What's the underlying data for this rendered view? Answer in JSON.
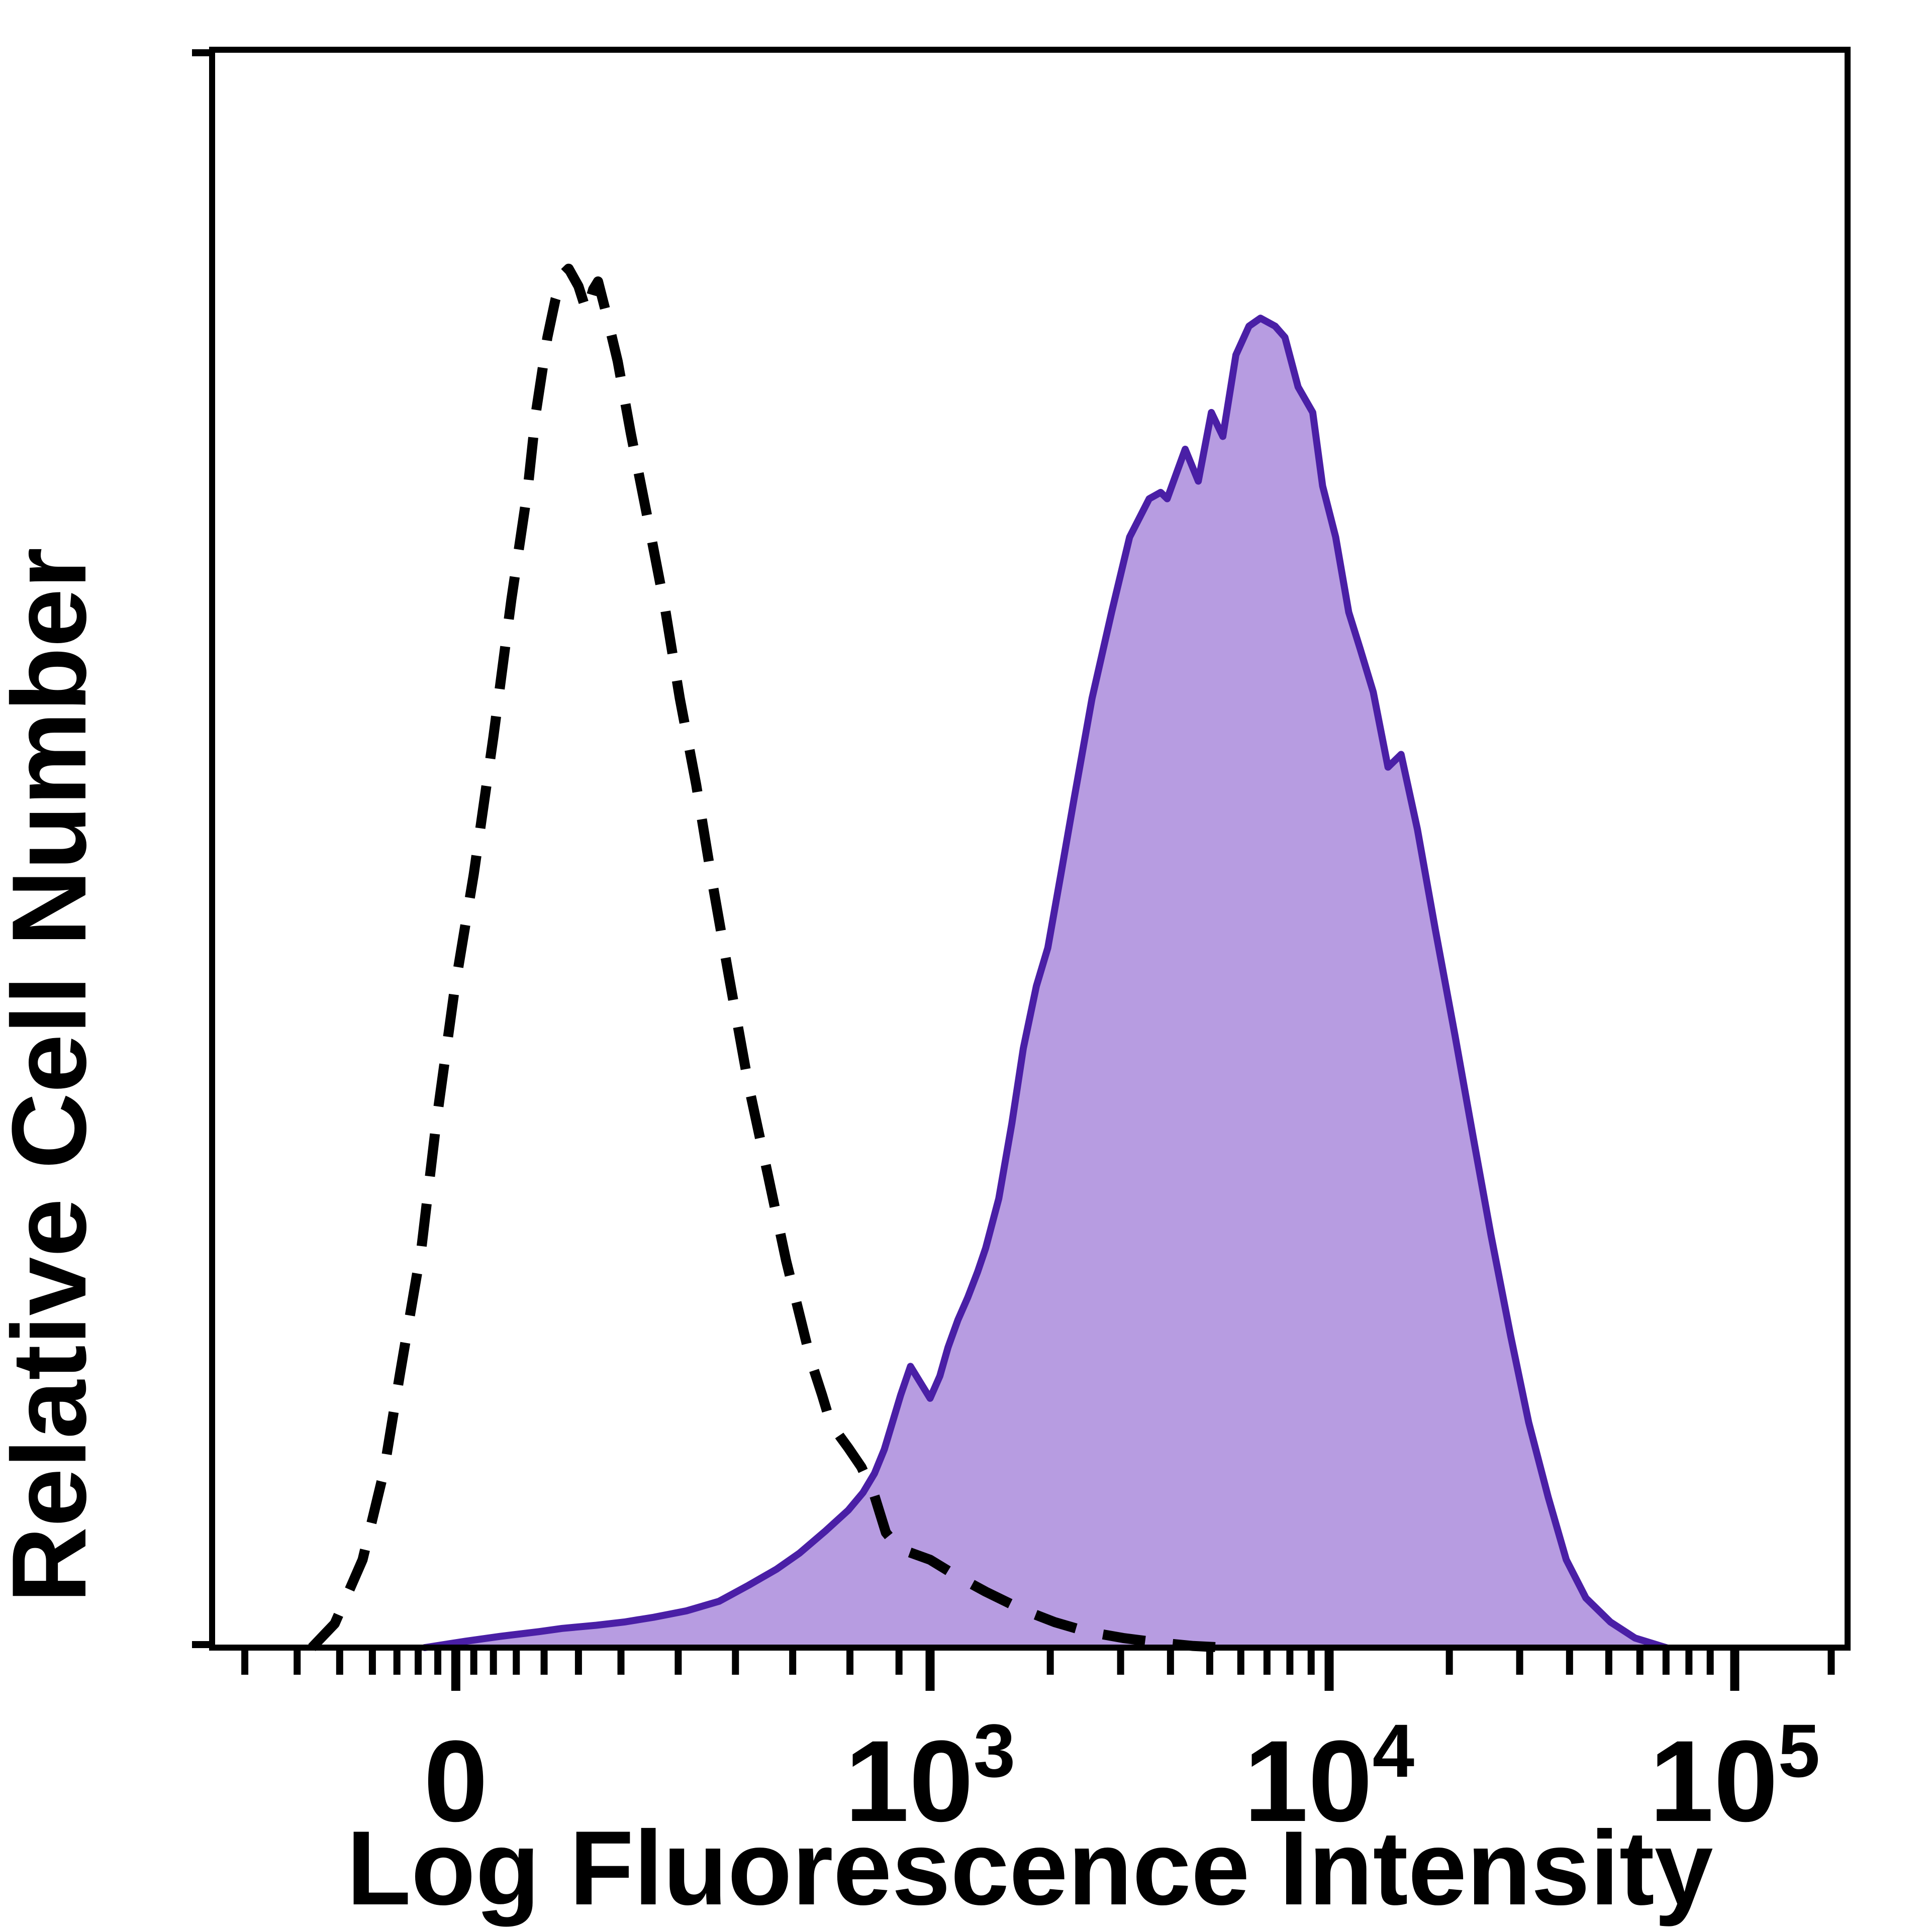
{
  "page": {
    "background": "#ffffff"
  },
  "chart_data": {
    "type": "area",
    "title": "",
    "xlabel": "Log Fluorescence Intensity",
    "ylabel": "Relative Cell Number",
    "x_scale": "biexponential (compressed linear region around 0, log10 above 10^3)",
    "x_range_note": "axis fractions 0-1 span the plot frame; labeled ticks placed at the fractions below",
    "y_range": [
      0,
      1
    ],
    "y_ticks": "none (unlabeled relative scale)",
    "grid": "off",
    "legend": "none shown",
    "colors": {
      "frame": "#000000",
      "dashed_curve": "#000000",
      "filled_curve_stroke": "#4a1fa6",
      "filled_curve_fill": "#b79ce1"
    },
    "x_ticks": [
      {
        "label": "0",
        "base": "0",
        "exp": "",
        "pos": 0.149
      },
      {
        "label": "10^3",
        "base": "10",
        "exp": "3",
        "pos": 0.439
      },
      {
        "label": "10^4",
        "base": "10",
        "exp": "4",
        "pos": 0.683
      },
      {
        "label": "10^5",
        "base": "10",
        "exp": "5",
        "pos": 0.931
      }
    ],
    "x_minor_ticks": [
      0.02,
      0.052,
      0.078,
      0.098,
      0.113,
      0.126,
      0.138,
      0.16,
      0.172,
      0.186,
      0.203,
      0.224,
      0.25,
      0.285,
      0.32,
      0.355,
      0.39,
      0.42,
      0.5125,
      0.5555,
      0.586,
      0.61,
      0.629,
      0.645,
      0.659,
      0.672,
      0.7565,
      0.7995,
      0.83,
      0.854,
      0.873,
      0.889,
      0.903,
      0.916,
      0.99
    ],
    "series": [
      {
        "name": "dashed_black_curve",
        "style": "dashed-line",
        "stroke": "#000000",
        "fill": "none",
        "peak": {
          "pos": 0.218,
          "height": 0.863
        },
        "points": [
          [
            0.061,
            0.0
          ],
          [
            0.075,
            0.015
          ],
          [
            0.092,
            0.055
          ],
          [
            0.105,
            0.11
          ],
          [
            0.115,
            0.172
          ],
          [
            0.128,
            0.25
          ],
          [
            0.137,
            0.328
          ],
          [
            0.148,
            0.41
          ],
          [
            0.16,
            0.484
          ],
          [
            0.172,
            0.57
          ],
          [
            0.183,
            0.656
          ],
          [
            0.193,
            0.725
          ],
          [
            0.198,
            0.773
          ],
          [
            0.205,
            0.82
          ],
          [
            0.21,
            0.844
          ],
          [
            0.215,
            0.86
          ],
          [
            0.218,
            0.863
          ],
          [
            0.224,
            0.852
          ],
          [
            0.229,
            0.836
          ],
          [
            0.233,
            0.85
          ],
          [
            0.236,
            0.855
          ],
          [
            0.241,
            0.835
          ],
          [
            0.248,
            0.805
          ],
          [
            0.256,
            0.76
          ],
          [
            0.267,
            0.703
          ],
          [
            0.277,
            0.65
          ],
          [
            0.286,
            0.594
          ],
          [
            0.296,
            0.54
          ],
          [
            0.305,
            0.484
          ],
          [
            0.316,
            0.42
          ],
          [
            0.328,
            0.352
          ],
          [
            0.34,
            0.295
          ],
          [
            0.351,
            0.242
          ],
          [
            0.36,
            0.205
          ],
          [
            0.366,
            0.18
          ],
          [
            0.373,
            0.158
          ],
          [
            0.378,
            0.141
          ],
          [
            0.384,
            0.132
          ],
          [
            0.389,
            0.125
          ],
          [
            0.397,
            0.113
          ],
          [
            0.405,
            0.095
          ],
          [
            0.412,
            0.072
          ],
          [
            0.42,
            0.062
          ],
          [
            0.439,
            0.055
          ],
          [
            0.455,
            0.045
          ],
          [
            0.473,
            0.035
          ],
          [
            0.495,
            0.024
          ],
          [
            0.515,
            0.016
          ],
          [
            0.535,
            0.01
          ],
          [
            0.557,
            0.006
          ],
          [
            0.58,
            0.003
          ],
          [
            0.6,
            0.001
          ],
          [
            0.62,
            0.0
          ]
        ]
      },
      {
        "name": "filled_purple_curve",
        "style": "filled-area",
        "stroke": "#4a1fa6",
        "fill": "#b79ce1",
        "peak": {
          "pos": 0.641,
          "height": 0.832
        },
        "points": [
          [
            0.13,
            0.0
          ],
          [
            0.155,
            0.004
          ],
          [
            0.176,
            0.007
          ],
          [
            0.2,
            0.01
          ],
          [
            0.214,
            0.012
          ],
          [
            0.235,
            0.014
          ],
          [
            0.252,
            0.016
          ],
          [
            0.27,
            0.019
          ],
          [
            0.29,
            0.023
          ],
          [
            0.31,
            0.029
          ],
          [
            0.328,
            0.039
          ],
          [
            0.345,
            0.049
          ],
          [
            0.359,
            0.059
          ],
          [
            0.375,
            0.073
          ],
          [
            0.389,
            0.086
          ],
          [
            0.398,
            0.097
          ],
          [
            0.405,
            0.109
          ],
          [
            0.411,
            0.124
          ],
          [
            0.416,
            0.141
          ],
          [
            0.421,
            0.158
          ],
          [
            0.427,
            0.176
          ],
          [
            0.433,
            0.166
          ],
          [
            0.439,
            0.156
          ],
          [
            0.445,
            0.17
          ],
          [
            0.45,
            0.188
          ],
          [
            0.456,
            0.205
          ],
          [
            0.462,
            0.219
          ],
          [
            0.468,
            0.235
          ],
          [
            0.473,
            0.25
          ],
          [
            0.481,
            0.281
          ],
          [
            0.489,
            0.328
          ],
          [
            0.496,
            0.375
          ],
          [
            0.504,
            0.414
          ],
          [
            0.511,
            0.438
          ],
          [
            0.519,
            0.484
          ],
          [
            0.527,
            0.531
          ],
          [
            0.538,
            0.594
          ],
          [
            0.55,
            0.648
          ],
          [
            0.561,
            0.695
          ],
          [
            0.573,
            0.719
          ],
          [
            0.58,
            0.723
          ],
          [
            0.584,
            0.719
          ],
          [
            0.59,
            0.736
          ],
          [
            0.595,
            0.75
          ],
          [
            0.603,
            0.73
          ],
          [
            0.611,
            0.773
          ],
          [
            0.618,
            0.758
          ],
          [
            0.626,
            0.809
          ],
          [
            0.634,
            0.827
          ],
          [
            0.641,
            0.832
          ],
          [
            0.65,
            0.827
          ],
          [
            0.656,
            0.82
          ],
          [
            0.664,
            0.789
          ],
          [
            0.673,
            0.773
          ],
          [
            0.679,
            0.727
          ],
          [
            0.687,
            0.695
          ],
          [
            0.695,
            0.648
          ],
          [
            0.702,
            0.625
          ],
          [
            0.71,
            0.598
          ],
          [
            0.719,
            0.551
          ],
          [
            0.727,
            0.559
          ],
          [
            0.737,
            0.512
          ],
          [
            0.748,
            0.449
          ],
          [
            0.76,
            0.383
          ],
          [
            0.771,
            0.32
          ],
          [
            0.782,
            0.258
          ],
          [
            0.794,
            0.195
          ],
          [
            0.805,
            0.141
          ],
          [
            0.817,
            0.094
          ],
          [
            0.828,
            0.055
          ],
          [
            0.84,
            0.031
          ],
          [
            0.855,
            0.016
          ],
          [
            0.87,
            0.006
          ],
          [
            0.889,
            0.0
          ]
        ]
      }
    ]
  }
}
